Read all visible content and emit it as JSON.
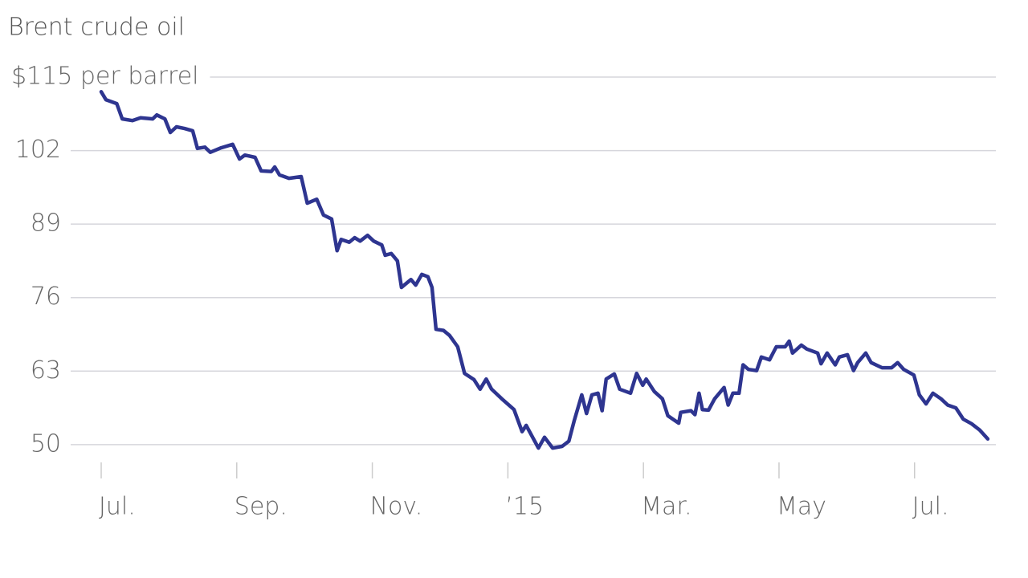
{
  "chart_data": {
    "type": "line",
    "title": "Brent crude oil",
    "x": [
      0,
      0.07,
      0.23,
      0.31,
      0.46,
      0.58,
      0.76,
      0.82,
      0.94,
      1.02,
      1.11,
      1.23,
      1.35,
      1.42,
      1.53,
      1.61,
      1.77,
      1.94,
      2.04,
      2.12,
      2.27,
      2.36,
      2.51,
      2.56,
      2.63,
      2.77,
      2.95,
      3.04,
      3.18,
      3.28,
      3.4,
      3.48,
      3.54,
      3.66,
      3.74,
      3.82,
      3.93,
      4.02,
      4.14,
      4.19,
      4.28,
      4.37,
      4.43,
      4.57,
      4.64,
      4.73,
      4.82,
      4.88,
      4.94,
      5.05,
      5.14,
      5.26,
      5.36,
      5.5,
      5.59,
      5.68,
      5.76,
      5.91,
      6.09,
      6.21,
      6.27,
      6.45,
      6.54,
      6.66,
      6.8,
      6.9,
      6.98,
      7.09,
      7.16,
      7.24,
      7.33,
      7.39,
      7.45,
      7.57,
      7.65,
      7.81,
      7.9,
      7.99,
      8.04,
      8.16,
      8.28,
      8.36,
      8.52,
      8.55,
      8.7,
      8.76,
      8.82,
      8.87,
      8.96,
      9.05,
      9.19,
      9.25,
      9.32,
      9.41,
      9.47,
      9.55,
      9.67,
      9.74,
      9.86,
      9.96,
      10.09,
      10.15,
      10.2,
      10.33,
      10.41,
      10.57,
      10.62,
      10.71,
      10.83,
      10.89,
      11.01,
      11.1,
      11.16,
      11.28,
      11.36,
      11.52,
      11.66,
      11.75,
      11.84,
      11.99,
      12.07,
      12.17,
      12.27,
      12.39,
      12.49,
      12.61,
      12.72,
      12.84,
      12.96,
      13.08
    ],
    "series": [
      {
        "name": "Brent",
        "color": "#2e3590",
        "values": [
          112.4,
          111.0,
          110.3,
          107.6,
          107.3,
          107.8,
          107.6,
          108.3,
          107.6,
          105.2,
          106.2,
          105.9,
          105.5,
          102.4,
          102.6,
          101.7,
          102.5,
          103.1,
          100.5,
          101.2,
          100.8,
          98.4,
          98.3,
          99.1,
          97.7,
          97.1,
          97.4,
          92.7,
          93.4,
          90.6,
          89.9,
          84.3,
          86.3,
          85.8,
          86.6,
          86.0,
          87.0,
          86.0,
          85.3,
          83.5,
          83.8,
          82.5,
          77.8,
          79.2,
          78.2,
          80.1,
          79.7,
          77.8,
          70.4,
          70.2,
          69.3,
          67.3,
          62.6,
          61.5,
          59.8,
          61.6,
          59.8,
          58.1,
          56.2,
          52.3,
          53.4,
          49.4,
          51.3,
          49.4,
          49.7,
          50.6,
          54.3,
          58.8,
          55.5,
          58.8,
          59.1,
          56.0,
          61.6,
          62.5,
          59.8,
          59.1,
          62.6,
          60.5,
          61.6,
          59.4,
          58.1,
          55.1,
          53.8,
          55.7,
          56.0,
          55.3,
          59.1,
          56.2,
          56.1,
          58.1,
          60.1,
          57.0,
          59.1,
          59.1,
          64.1,
          63.3,
          63.1,
          65.5,
          65.0,
          67.3,
          67.3,
          68.3,
          66.2,
          67.6,
          66.9,
          66.2,
          64.3,
          66.2,
          64.1,
          65.5,
          65.9,
          63.1,
          64.5,
          66.2,
          64.5,
          63.6,
          63.6,
          64.5,
          63.3,
          62.3,
          58.8,
          57.2,
          59.1,
          58.1,
          57.0,
          56.5,
          54.5,
          53.7,
          52.6,
          51.0
        ]
      }
    ],
    "xlim": [
      0,
      13.1
    ],
    "xticks": [
      {
        "value": 0,
        "label": "Jul."
      },
      {
        "value": 2,
        "label": "Sep."
      },
      {
        "value": 4,
        "label": "Nov."
      },
      {
        "value": 6,
        "label": "’15"
      },
      {
        "value": 8,
        "label": "Mar."
      },
      {
        "value": 10,
        "label": "May"
      },
      {
        "value": 12,
        "label": "Jul."
      }
    ],
    "ylim": [
      47,
      115
    ],
    "yticks": [
      50,
      63,
      76,
      89,
      102,
      {
        "value": 115,
        "label": "$115 per barrel"
      }
    ],
    "grid": true
  }
}
